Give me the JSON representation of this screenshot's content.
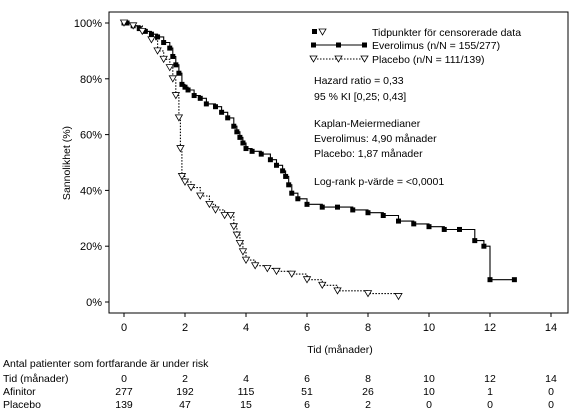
{
  "chart_data": {
    "type": "line",
    "title": "",
    "xlabel": "Tid (månader)",
    "ylabel": "Sannolikhet (%)",
    "xlim": [
      0,
      14
    ],
    "ylim": [
      0,
      100
    ],
    "x_ticks": [
      "0",
      "2",
      "4",
      "6",
      "8",
      "10",
      "12",
      "14"
    ],
    "y_ticks": [
      "0%",
      "20%",
      "40%",
      "60%",
      "80%",
      "100%"
    ],
    "grid": false,
    "legend_position": "top-right",
    "legend_title": "Tidpunkter för censorerade data",
    "series": [
      {
        "name": "Everolimus (n/N = 155/277)",
        "line_style": "solid",
        "marker": "filled-square",
        "x": [
          0,
          0.1,
          0.3,
          0.5,
          0.7,
          0.9,
          1.1,
          1.3,
          1.5,
          1.6,
          1.7,
          1.8,
          1.9,
          2.0,
          2.1,
          2.3,
          2.5,
          2.7,
          3.0,
          3.2,
          3.4,
          3.6,
          3.7,
          3.8,
          3.9,
          4.0,
          4.2,
          4.5,
          4.8,
          5.0,
          5.2,
          5.3,
          5.4,
          5.5,
          5.7,
          6.0,
          6.5,
          7.0,
          7.5,
          8.0,
          8.5,
          9.0,
          9.5,
          10.0,
          10.5,
          11.0,
          11.5,
          11.8,
          12.0,
          12.8
        ],
        "y": [
          100,
          100,
          99,
          98,
          97,
          96,
          95,
          93,
          91,
          88,
          85,
          82,
          78,
          77,
          76,
          74,
          73,
          71,
          70,
          68,
          66,
          63,
          61,
          59,
          57,
          55,
          54,
          53,
          51,
          49,
          47,
          45,
          42,
          39,
          37,
          35,
          34,
          34,
          33,
          32,
          31,
          29,
          28,
          27,
          26,
          26,
          22,
          20,
          8,
          8
        ]
      },
      {
        "name": "Placebo (n/N = 111/139)",
        "line_style": "dotted",
        "marker": "open-triangle-down",
        "x": [
          0,
          0.3,
          0.6,
          0.9,
          1.1,
          1.3,
          1.5,
          1.6,
          1.7,
          1.8,
          1.85,
          1.9,
          2.0,
          2.2,
          2.5,
          2.8,
          3.0,
          3.3,
          3.5,
          3.6,
          3.7,
          3.8,
          3.9,
          4.0,
          4.3,
          4.7,
          5.0,
          5.5,
          6.0,
          6.5,
          7.0,
          8.0,
          9.0
        ],
        "y": [
          100,
          99,
          97,
          94,
          90,
          87,
          84,
          80,
          74,
          66,
          55,
          45,
          43,
          41,
          38,
          35,
          33,
          31,
          31,
          27,
          24,
          21,
          18,
          15,
          13,
          12,
          11,
          10,
          8,
          6,
          4,
          3,
          2
        ]
      }
    ],
    "annotations": [
      "Hazard ratio = 0,33",
      "95 % KI [0,25; 0,43]",
      "Kaplan-Meiermedianer",
      "Everolimus: 4,90 månader",
      "Placebo: 1,87 månader",
      "Log-rank p-värde = <0,0001"
    ],
    "colors": {
      "line": "#000000",
      "axis": "#000000"
    }
  },
  "risk_table": {
    "caption": "Antal patienter som fortfarande är under risk",
    "rows": [
      {
        "label": "Tid (månader)",
        "values": [
          "0",
          "2",
          "4",
          "6",
          "8",
          "10",
          "12",
          "14"
        ]
      },
      {
        "label": "Afinitor",
        "values": [
          "277",
          "192",
          "115",
          "51",
          "26",
          "10",
          "1",
          "0"
        ]
      },
      {
        "label": "Placebo",
        "values": [
          "139",
          "47",
          "15",
          "6",
          "2",
          "0",
          "0",
          "0"
        ]
      }
    ]
  }
}
